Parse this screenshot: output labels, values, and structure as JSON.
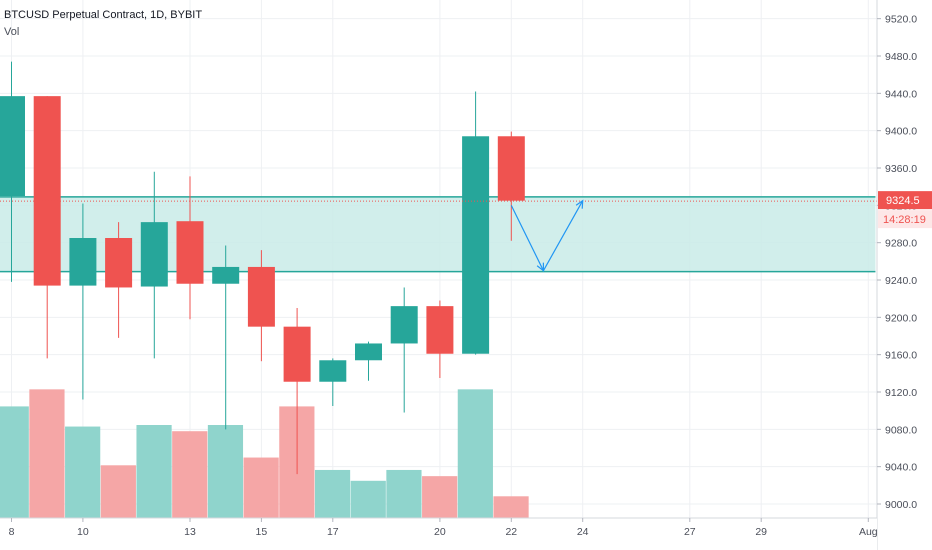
{
  "legend": {
    "title": "BTCUSD Perpetual Contract, 1D, BYBIT",
    "volume": "Vol"
  },
  "price_tag": {
    "value": "9324.5",
    "timer": "14:28:19"
  },
  "colors": {
    "up": "#26a69a",
    "down": "#ef5350",
    "vol_up": "#8fd4cc",
    "vol_down": "#f5a6a6",
    "zone_fill": "#c9ebe8",
    "zone_line": "#26a69a",
    "arrow": "#2196f3",
    "price_line": "#ef5350",
    "grid": "#eef0f3",
    "axis_text": "#4a4e59"
  },
  "chart_data": {
    "type": "candlestick",
    "title": "BTCUSD Perpetual Contract, 1D, BYBIT",
    "ylim": [
      8985,
      9540
    ],
    "y_ticks": [
      "9520.0",
      "9480.0",
      "9440.0",
      "9400.0",
      "9360.0",
      "9320.0",
      "9280.0",
      "9240.0",
      "9200.0",
      "9160.0",
      "9120.0",
      "9080.0",
      "9040.0",
      "9000.0"
    ],
    "y_tick_values": [
      9520,
      9480,
      9440,
      9400,
      9360,
      9320,
      9280,
      9240,
      9200,
      9160,
      9120,
      9080,
      9040,
      9000
    ],
    "x_tick_labels": [
      "8",
      "10",
      "13",
      "15",
      "17",
      "20",
      "22",
      "24",
      "27",
      "29",
      "Aug"
    ],
    "x_tick_index": [
      0,
      2,
      5,
      7,
      9,
      12,
      14,
      16,
      19,
      21,
      24
    ],
    "candles": [
      {
        "i": 0,
        "open": 9330,
        "high": 9474,
        "low": 9238,
        "close": 9437
      },
      {
        "i": 1,
        "open": 9437,
        "high": 9437,
        "low": 9156,
        "close": 9234
      },
      {
        "i": 2,
        "open": 9234,
        "high": 9322,
        "low": 9112,
        "close": 9285
      },
      {
        "i": 3,
        "open": 9285,
        "high": 9302,
        "low": 9178,
        "close": 9232
      },
      {
        "i": 4,
        "open": 9233,
        "high": 9356,
        "low": 9156,
        "close": 9302
      },
      {
        "i": 5,
        "open": 9303,
        "high": 9351,
        "low": 9198,
        "close": 9236
      },
      {
        "i": 6,
        "open": 9236,
        "high": 9277,
        "low": 9080,
        "close": 9254
      },
      {
        "i": 7,
        "open": 9254,
        "high": 9272,
        "low": 9153,
        "close": 9190
      },
      {
        "i": 8,
        "open": 9190,
        "high": 9210,
        "low": 9032,
        "close": 9131
      },
      {
        "i": 9,
        "open": 9131,
        "high": 9156,
        "low": 9105,
        "close": 9154
      },
      {
        "i": 10,
        "open": 9154,
        "high": 9174,
        "low": 9132,
        "close": 9172
      },
      {
        "i": 11,
        "open": 9172,
        "high": 9232,
        "low": 9098,
        "close": 9212
      },
      {
        "i": 12,
        "open": 9212,
        "high": 9218,
        "low": 9135,
        "close": 9161
      },
      {
        "i": 13,
        "open": 9161,
        "high": 9442,
        "low": 9160,
        "close": 9394
      },
      {
        "i": 14,
        "open": 9394,
        "high": 9399,
        "low": 9282,
        "close": 9325
      }
    ],
    "volume_ratio": [
      0.72,
      0.83,
      0.59,
      0.34,
      0.6,
      0.56,
      0.6,
      0.39,
      0.72,
      0.31,
      0.24,
      0.31,
      0.27,
      0.83,
      0.14
    ],
    "zone": {
      "from_index": 0,
      "to_index": 24.2,
      "top": 9329,
      "bottom": 9249
    },
    "projection": [
      [
        14.0,
        9320
      ],
      [
        14.9,
        9250
      ],
      [
        16.0,
        9325
      ]
    ],
    "current_price": 9324.5
  }
}
